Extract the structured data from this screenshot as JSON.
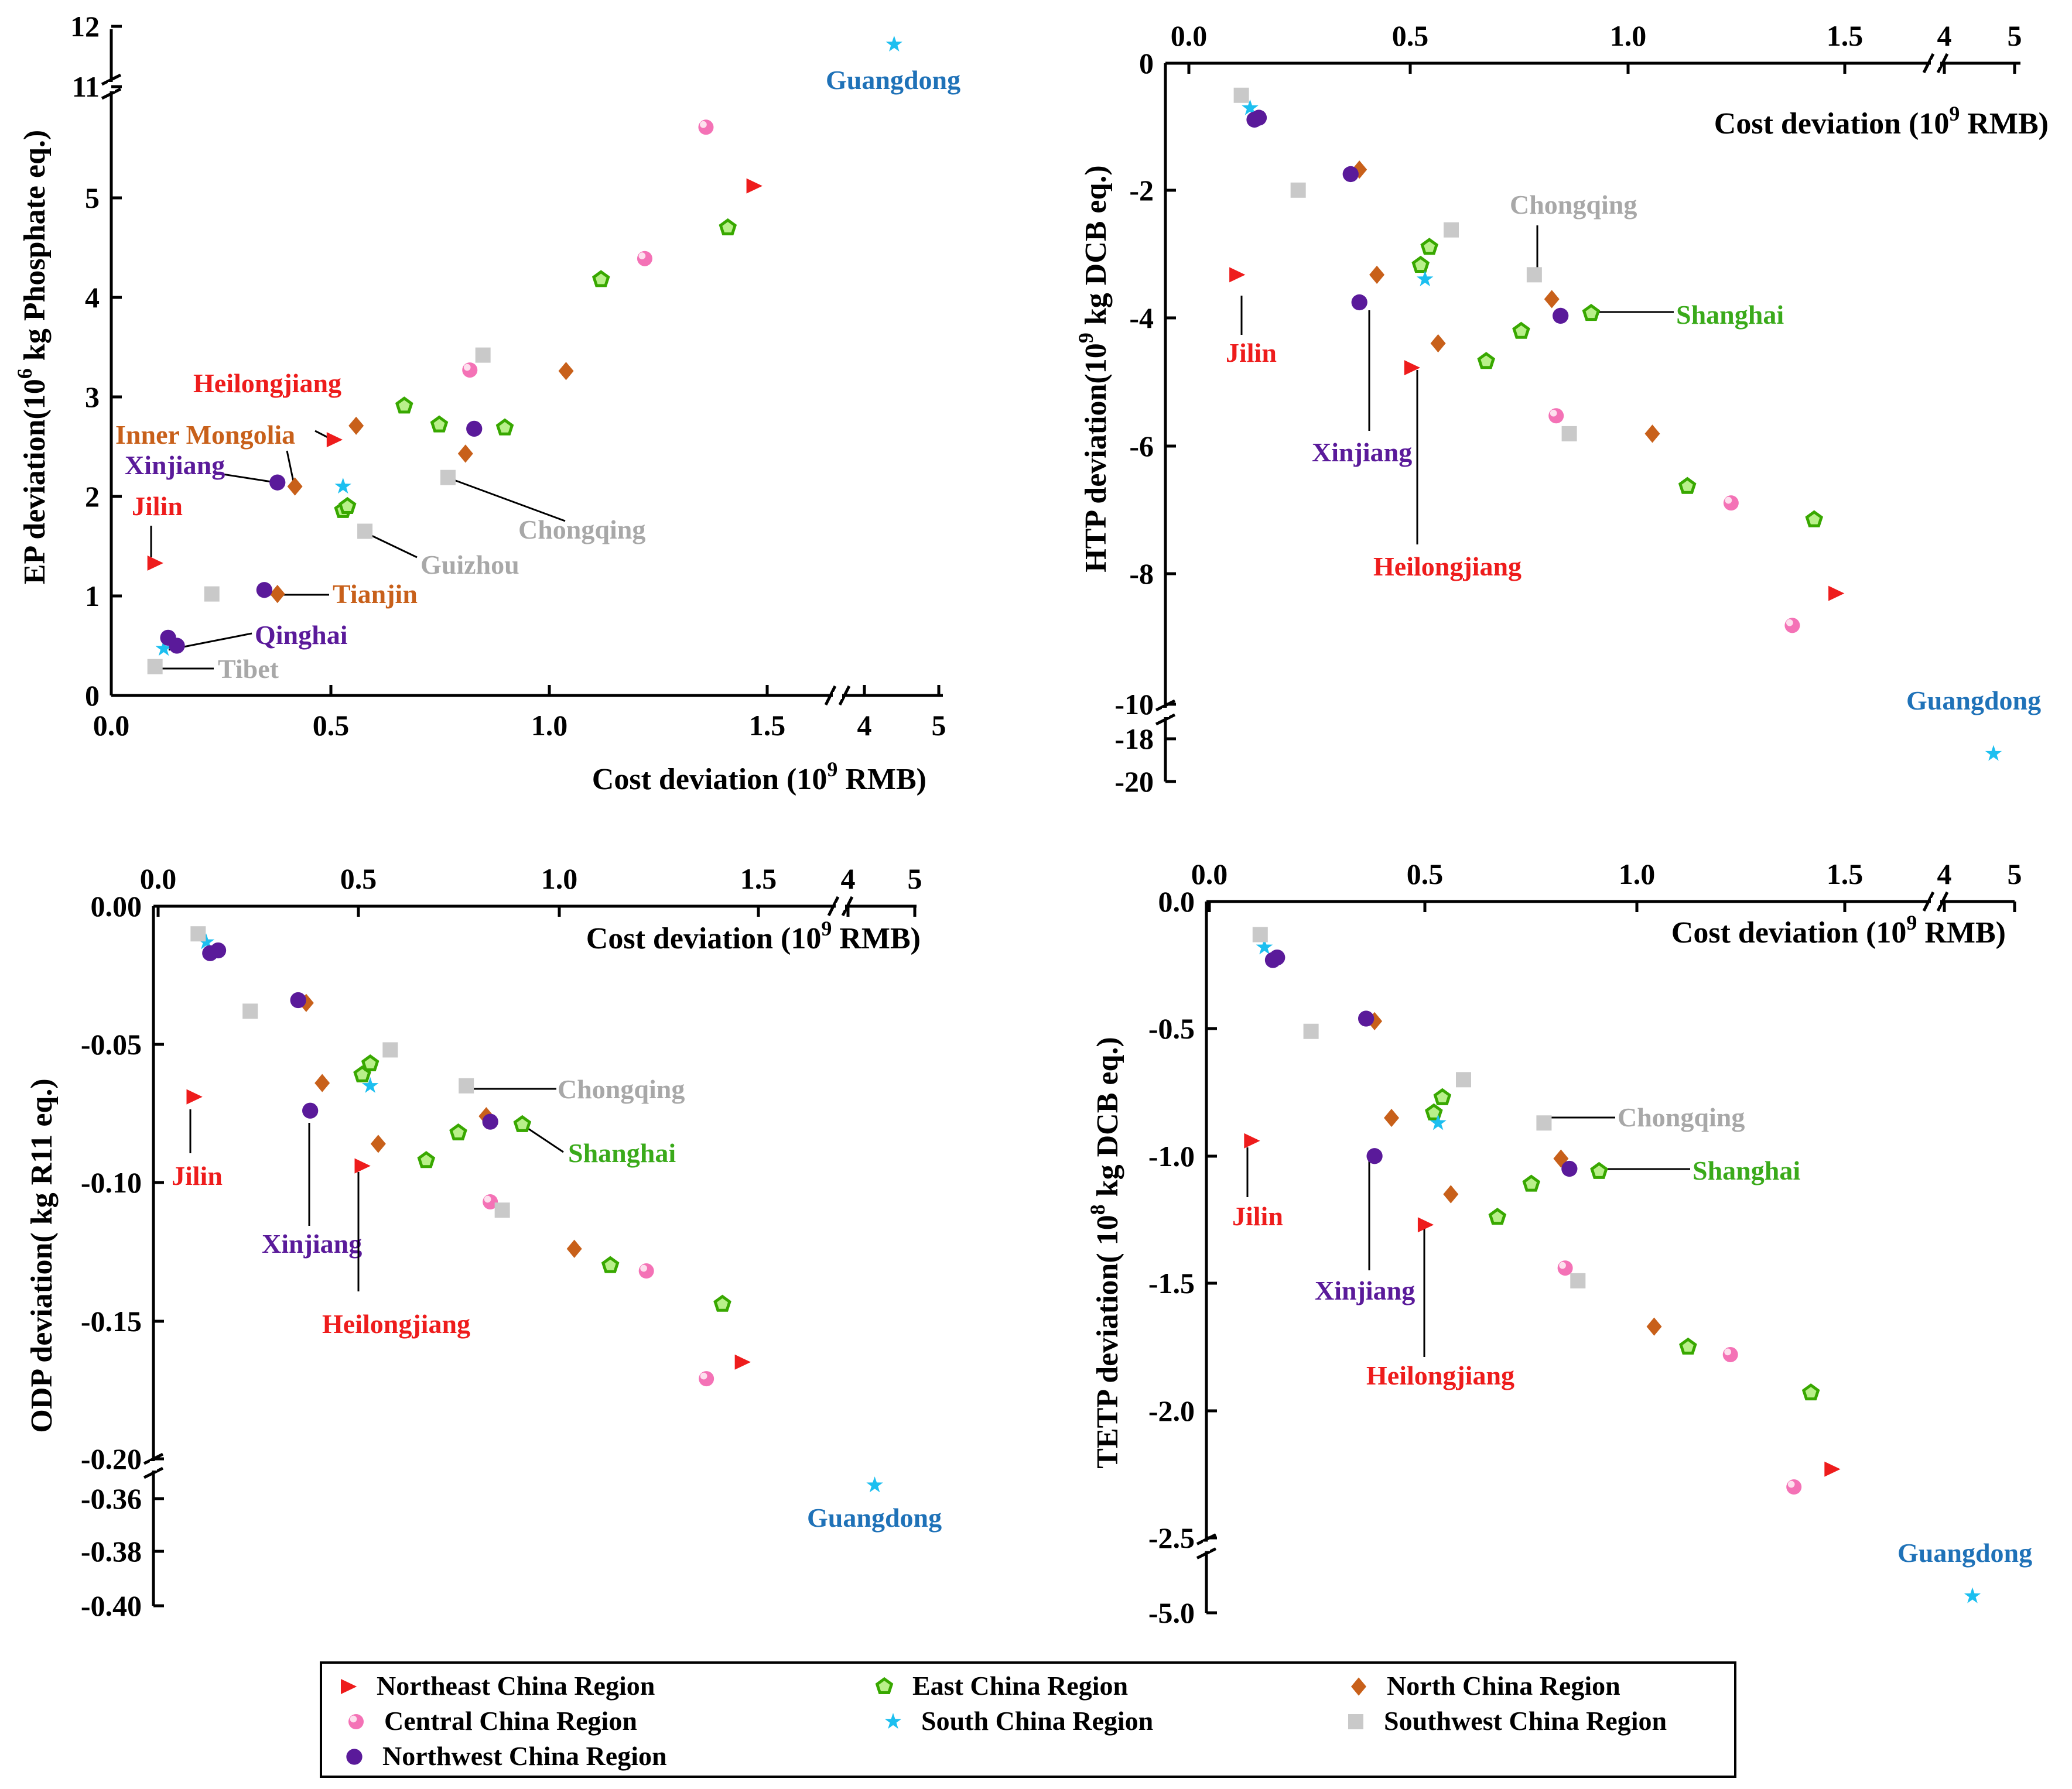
{
  "colors": {
    "northeast": "#ee1c1c",
    "east": "#38a800",
    "north": "#c8601a",
    "central": "#f472b6",
    "south": "#1cbff0",
    "southwest": "#c9c9c9",
    "northwest": "#5a1a9a",
    "label_east": "#3aaa1a",
    "label_north": "#c8601a",
    "label_southwest": "#a8a8a8",
    "label_guangdong": "#1f72b8"
  },
  "legend": [
    {
      "key": "northeast",
      "label": "Northeast China Region",
      "marker": "triangle"
    },
    {
      "key": "east",
      "label": "East China Region",
      "marker": "pentagon"
    },
    {
      "key": "north",
      "label": "North China Region",
      "marker": "diamond"
    },
    {
      "key": "central",
      "label": "Central China Region",
      "marker": "ball"
    },
    {
      "key": "south",
      "label": "South China Region",
      "marker": "star"
    },
    {
      "key": "southwest",
      "label": "Southwest China Region",
      "marker": "square"
    },
    {
      "key": "northwest",
      "label": "Northwest China Region",
      "marker": "circle"
    }
  ],
  "chart_data": [
    {
      "id": "ep",
      "type": "scatter",
      "ylabel": {
        "pre": "EP deviation(10",
        "sup": "6",
        "post": " kg Phosphate eq.)"
      },
      "xlabel": {
        "pre": "Cost deviation (10",
        "sup": "9",
        "post": " RMB)"
      },
      "x_axis_position": "bottom",
      "x_break": {
        "ticks_low": [
          "0.0",
          "0.5",
          "1.0",
          "1.5"
        ],
        "ticks_high": [
          "4",
          "5"
        ],
        "low_range": [
          0,
          1.75
        ],
        "high_range": [
          3.9,
          5
        ]
      },
      "y_break": {
        "low_ticks": [
          "0",
          "1",
          "2",
          "3",
          "4",
          "5"
        ],
        "high_ticks": [
          "11",
          "12"
        ],
        "low_range": [
          0,
          5.9
        ],
        "high_range": [
          11,
          12
        ]
      },
      "points": [
        {
          "x": 0.1,
          "y": 1.33,
          "g": "northeast"
        },
        {
          "x": 0.51,
          "y": 2.57,
          "g": "northeast"
        },
        {
          "x": 1.47,
          "y": 5.12,
          "g": "northeast"
        },
        {
          "x": 0.53,
          "y": 1.86,
          "g": "east"
        },
        {
          "x": 0.54,
          "y": 1.9,
          "g": "east"
        },
        {
          "x": 0.67,
          "y": 2.91,
          "g": "east"
        },
        {
          "x": 0.75,
          "y": 2.72,
          "g": "east"
        },
        {
          "x": 0.9,
          "y": 2.69,
          "g": "east"
        },
        {
          "x": 1.12,
          "y": 4.18,
          "g": "east"
        },
        {
          "x": 1.41,
          "y": 4.7,
          "g": "east"
        },
        {
          "x": 0.38,
          "y": 1.02,
          "g": "north"
        },
        {
          "x": 0.42,
          "y": 2.1,
          "g": "north"
        },
        {
          "x": 0.56,
          "y": 2.71,
          "g": "north"
        },
        {
          "x": 0.81,
          "y": 2.43,
          "g": "north"
        },
        {
          "x": 1.04,
          "y": 3.26,
          "g": "north"
        },
        {
          "x": 0.82,
          "y": 3.27,
          "g": "central"
        },
        {
          "x": 1.22,
          "y": 4.39,
          "g": "central"
        },
        {
          "x": 1.36,
          "y": 5.71,
          "g": "central"
        },
        {
          "x": 0.12,
          "y": 0.47,
          "g": "south"
        },
        {
          "x": 0.53,
          "y": 2.1,
          "g": "south"
        },
        {
          "x": 4.4,
          "y": 11.7,
          "g": "south"
        },
        {
          "x": 0.1,
          "y": 0.29,
          "g": "southwest"
        },
        {
          "x": 0.23,
          "y": 1.02,
          "g": "southwest"
        },
        {
          "x": 0.58,
          "y": 1.65,
          "g": "southwest"
        },
        {
          "x": 0.77,
          "y": 2.19,
          "g": "southwest"
        },
        {
          "x": 0.85,
          "y": 3.42,
          "g": "southwest"
        },
        {
          "x": 0.13,
          "y": 0.58,
          "g": "northwest"
        },
        {
          "x": 0.15,
          "y": 0.5,
          "g": "northwest"
        },
        {
          "x": 0.35,
          "y": 1.06,
          "g": "northwest"
        },
        {
          "x": 0.38,
          "y": 2.14,
          "g": "northwest"
        },
        {
          "x": 0.83,
          "y": 2.68,
          "g": "northwest"
        }
      ],
      "annotations": [
        {
          "text": "Guangdong",
          "c": "label_guangdong"
        },
        {
          "text": "Heilongjiang",
          "c": "northeast"
        },
        {
          "text": "Inner Mongolia",
          "c": "label_north"
        },
        {
          "text": "Xinjiang",
          "c": "northwest"
        },
        {
          "text": "Jilin",
          "c": "northeast"
        },
        {
          "text": "Chongqing",
          "c": "label_southwest"
        },
        {
          "text": "Guizhou",
          "c": "label_southwest"
        },
        {
          "text": "Tianjin",
          "c": "label_north"
        },
        {
          "text": "Qinghai",
          "c": "northwest"
        },
        {
          "text": "Tibet",
          "c": "label_southwest"
        }
      ]
    },
    {
      "id": "htp",
      "type": "scatter",
      "ylabel": {
        "pre": "HTP deviation(10",
        "sup": "9",
        "post": " kg DCB eq.)"
      },
      "xlabel": {
        "pre": "Cost deviation (10",
        "sup": "9",
        "post": " RMB)"
      },
      "x_axis_position": "top",
      "x_break": {
        "ticks_low": [
          "0.0",
          "0.5",
          "1.0",
          "1.5"
        ],
        "ticks_high": [
          "4",
          "5"
        ],
        "low_range": [
          0,
          1.75
        ],
        "high_range": [
          3.9,
          5
        ]
      },
      "y_break": {
        "low_ticks": [
          "0",
          "-2",
          "-4",
          "-6",
          "-8",
          "-10"
        ],
        "high_ticks": [
          "-18",
          "-20"
        ],
        "low_range": [
          0,
          -10
        ],
        "high_range": [
          -17,
          -20
        ]
      },
      "points": [
        {
          "x": 0.11,
          "y": -3.3,
          "g": "northeast"
        },
        {
          "x": 0.51,
          "y": -4.75,
          "g": "northeast"
        },
        {
          "x": 1.48,
          "y": -8.27,
          "g": "northeast"
        },
        {
          "x": 0.53,
          "y": -3.15,
          "g": "east"
        },
        {
          "x": 0.55,
          "y": -2.87,
          "g": "east"
        },
        {
          "x": 0.68,
          "y": -4.65,
          "g": "east"
        },
        {
          "x": 0.76,
          "y": -4.18,
          "g": "east"
        },
        {
          "x": 0.92,
          "y": -3.9,
          "g": "east"
        },
        {
          "x": 1.14,
          "y": -6.6,
          "g": "east"
        },
        {
          "x": 1.43,
          "y": -7.12,
          "g": "east"
        },
        {
          "x": 0.39,
          "y": -1.66,
          "g": "north"
        },
        {
          "x": 0.43,
          "y": -3.3,
          "g": "north"
        },
        {
          "x": 0.57,
          "y": -4.37,
          "g": "north"
        },
        {
          "x": 0.83,
          "y": -3.68,
          "g": "north"
        },
        {
          "x": 1.06,
          "y": -5.78,
          "g": "north"
        },
        {
          "x": 0.84,
          "y": -5.5,
          "g": "central"
        },
        {
          "x": 1.24,
          "y": -6.86,
          "g": "central"
        },
        {
          "x": 1.38,
          "y": -8.77,
          "g": "central"
        },
        {
          "x": 0.14,
          "y": -0.7,
          "g": "south"
        },
        {
          "x": 0.54,
          "y": -3.37,
          "g": "south"
        },
        {
          "x": 4.7,
          "y": -18.7,
          "g": "south"
        },
        {
          "x": 0.12,
          "y": -0.5,
          "g": "southwest"
        },
        {
          "x": 0.25,
          "y": -1.98,
          "g": "southwest"
        },
        {
          "x": 0.6,
          "y": -2.6,
          "g": "southwest"
        },
        {
          "x": 0.79,
          "y": -3.3,
          "g": "southwest"
        },
        {
          "x": 0.87,
          "y": -5.78,
          "g": "southwest"
        },
        {
          "x": 0.15,
          "y": -0.88,
          "g": "northwest"
        },
        {
          "x": 0.16,
          "y": -0.85,
          "g": "northwest"
        },
        {
          "x": 0.37,
          "y": -1.73,
          "g": "northwest"
        },
        {
          "x": 0.39,
          "y": -3.73,
          "g": "northwest"
        },
        {
          "x": 0.85,
          "y": -3.94,
          "g": "northwest"
        }
      ],
      "annotations": [
        {
          "text": "Chongqing",
          "c": "label_southwest"
        },
        {
          "text": "Shanghai",
          "c": "label_east"
        },
        {
          "text": "Jilin",
          "c": "northeast"
        },
        {
          "text": "Xinjiang",
          "c": "northwest"
        },
        {
          "text": "Heilongjiang",
          "c": "northeast"
        },
        {
          "text": "Guangdong",
          "c": "label_guangdong"
        }
      ]
    },
    {
      "id": "odp",
      "type": "scatter",
      "ylabel": {
        "pre": "ODP deviation( kg R11 eq.)",
        "sup": "",
        "post": ""
      },
      "xlabel": {
        "pre": "Cost deviation (10",
        "sup": "9",
        "post": " RMB)"
      },
      "x_axis_position": "top",
      "x_break": {
        "ticks_low": [
          "0.0",
          "0.5",
          "1.0",
          "1.5"
        ],
        "ticks_high": [
          "4",
          "5"
        ],
        "low_range": [
          0,
          1.7
        ],
        "high_range": [
          3.9,
          5
        ]
      },
      "y_break": {
        "low_ticks": [
          "0.00",
          "-0.05",
          "-0.10",
          "-0.15",
          "-0.20"
        ],
        "high_ticks": [
          "-0.36",
          "-0.38",
          "-0.40"
        ],
        "low_range": [
          0,
          -0.2
        ],
        "high_range": [
          -0.35,
          -0.4
        ]
      },
      "points": [
        {
          "x": 0.09,
          "y": -0.069,
          "g": "northeast"
        },
        {
          "x": 0.51,
          "y": -0.094,
          "g": "northeast"
        },
        {
          "x": 1.46,
          "y": -0.165,
          "g": "northeast"
        },
        {
          "x": 0.51,
          "y": -0.061,
          "g": "east"
        },
        {
          "x": 0.53,
          "y": -0.057,
          "g": "east"
        },
        {
          "x": 0.67,
          "y": -0.092,
          "g": "east"
        },
        {
          "x": 0.75,
          "y": -0.082,
          "g": "east"
        },
        {
          "x": 0.91,
          "y": -0.079,
          "g": "east"
        },
        {
          "x": 1.13,
          "y": -0.13,
          "g": "east"
        },
        {
          "x": 1.41,
          "y": -0.144,
          "g": "east"
        },
        {
          "x": 0.37,
          "y": -0.035,
          "g": "north"
        },
        {
          "x": 0.41,
          "y": -0.064,
          "g": "north"
        },
        {
          "x": 0.55,
          "y": -0.086,
          "g": "north"
        },
        {
          "x": 0.82,
          "y": -0.076,
          "g": "north"
        },
        {
          "x": 1.04,
          "y": -0.124,
          "g": "north"
        },
        {
          "x": 0.83,
          "y": -0.107,
          "g": "central"
        },
        {
          "x": 1.22,
          "y": -0.132,
          "g": "central"
        },
        {
          "x": 1.37,
          "y": -0.171,
          "g": "central"
        },
        {
          "x": 0.12,
          "y": -0.013,
          "g": "south"
        },
        {
          "x": 0.53,
          "y": -0.065,
          "g": "south"
        },
        {
          "x": 4.4,
          "y": -0.355,
          "g": "south"
        },
        {
          "x": 0.1,
          "y": -0.01,
          "g": "southwest"
        },
        {
          "x": 0.23,
          "y": -0.038,
          "g": "southwest"
        },
        {
          "x": 0.58,
          "y": -0.052,
          "g": "southwest"
        },
        {
          "x": 0.77,
          "y": -0.065,
          "g": "southwest"
        },
        {
          "x": 0.86,
          "y": -0.11,
          "g": "southwest"
        },
        {
          "x": 0.13,
          "y": -0.017,
          "g": "northwest"
        },
        {
          "x": 0.15,
          "y": -0.016,
          "g": "northwest"
        },
        {
          "x": 0.35,
          "y": -0.034,
          "g": "northwest"
        },
        {
          "x": 0.38,
          "y": -0.074,
          "g": "northwest"
        },
        {
          "x": 0.83,
          "y": -0.078,
          "g": "northwest"
        }
      ],
      "annotations": [
        {
          "text": "Chongqing",
          "c": "label_southwest"
        },
        {
          "text": "Shanghai",
          "c": "label_east"
        },
        {
          "text": "Jilin",
          "c": "northeast"
        },
        {
          "text": "Xinjiang",
          "c": "northwest"
        },
        {
          "text": "Heilongjiang",
          "c": "northeast"
        },
        {
          "text": "Guangdong",
          "c": "label_guangdong"
        }
      ]
    },
    {
      "id": "tetp",
      "type": "scatter",
      "ylabel": {
        "pre": "TETP deviation( 10",
        "sup": "8",
        "post": " kg DCB eq.)"
      },
      "xlabel": {
        "pre": "Cost deviation (10",
        "sup": "9",
        "post": " RMB)"
      },
      "x_axis_position": "top",
      "x_break": {
        "ticks_low": [
          "0.0",
          "0.5",
          "1.0",
          "1.5"
        ],
        "ticks_high": [
          "4",
          "5"
        ],
        "low_range": [
          0,
          1.7
        ],
        "high_range": [
          3.9,
          5
        ]
      },
      "y_break": {
        "low_ticks": [
          "0.0",
          "-0.5",
          "-1.0",
          "-1.5",
          "-2.0",
          "-2.5"
        ],
        "high_ticks": [
          "-5.0"
        ],
        "low_range": [
          0,
          -2.5
        ],
        "high_range": [
          -4.5,
          -5.0
        ]
      },
      "points": [
        {
          "x": 0.1,
          "y": -0.94,
          "g": "northeast"
        },
        {
          "x": 0.51,
          "y": -1.27,
          "g": "northeast"
        },
        {
          "x": 1.47,
          "y": -2.23,
          "g": "northeast"
        },
        {
          "x": 0.53,
          "y": -0.83,
          "g": "east"
        },
        {
          "x": 0.55,
          "y": -0.77,
          "g": "east"
        },
        {
          "x": 0.68,
          "y": -1.24,
          "g": "east"
        },
        {
          "x": 0.76,
          "y": -1.11,
          "g": "east"
        },
        {
          "x": 0.92,
          "y": -1.06,
          "g": "east"
        },
        {
          "x": 1.13,
          "y": -1.75,
          "g": "east"
        },
        {
          "x": 1.42,
          "y": -1.93,
          "g": "east"
        },
        {
          "x": 0.39,
          "y": -0.47,
          "g": "north"
        },
        {
          "x": 0.43,
          "y": -0.85,
          "g": "north"
        },
        {
          "x": 0.57,
          "y": -1.15,
          "g": "north"
        },
        {
          "x": 0.83,
          "y": -1.01,
          "g": "north"
        },
        {
          "x": 1.05,
          "y": -1.67,
          "g": "north"
        },
        {
          "x": 0.84,
          "y": -1.44,
          "g": "central"
        },
        {
          "x": 1.23,
          "y": -1.78,
          "g": "central"
        },
        {
          "x": 1.38,
          "y": -2.3,
          "g": "central"
        },
        {
          "x": 0.13,
          "y": -0.18,
          "g": "south"
        },
        {
          "x": 0.54,
          "y": -0.87,
          "g": "south"
        },
        {
          "x": 4.4,
          "y": -4.85,
          "g": "south"
        },
        {
          "x": 0.12,
          "y": -0.13,
          "g": "southwest"
        },
        {
          "x": 0.24,
          "y": -0.51,
          "g": "southwest"
        },
        {
          "x": 0.6,
          "y": -0.7,
          "g": "southwest"
        },
        {
          "x": 0.79,
          "y": -0.87,
          "g": "southwest"
        },
        {
          "x": 0.87,
          "y": -1.49,
          "g": "southwest"
        },
        {
          "x": 0.15,
          "y": -0.23,
          "g": "northwest"
        },
        {
          "x": 0.16,
          "y": -0.22,
          "g": "northwest"
        },
        {
          "x": 0.37,
          "y": -0.46,
          "g": "northwest"
        },
        {
          "x": 0.39,
          "y": -1.0,
          "g": "northwest"
        },
        {
          "x": 0.85,
          "y": -1.05,
          "g": "northwest"
        }
      ],
      "annotations": [
        {
          "text": "Chongqing",
          "c": "label_southwest"
        },
        {
          "text": "Shanghai",
          "c": "label_east"
        },
        {
          "text": "Jilin",
          "c": "northeast"
        },
        {
          "text": "Xinjiang",
          "c": "northwest"
        },
        {
          "text": "Heilongjiang",
          "c": "northeast"
        },
        {
          "text": "Guangdong",
          "c": "label_guangdong"
        }
      ]
    }
  ]
}
